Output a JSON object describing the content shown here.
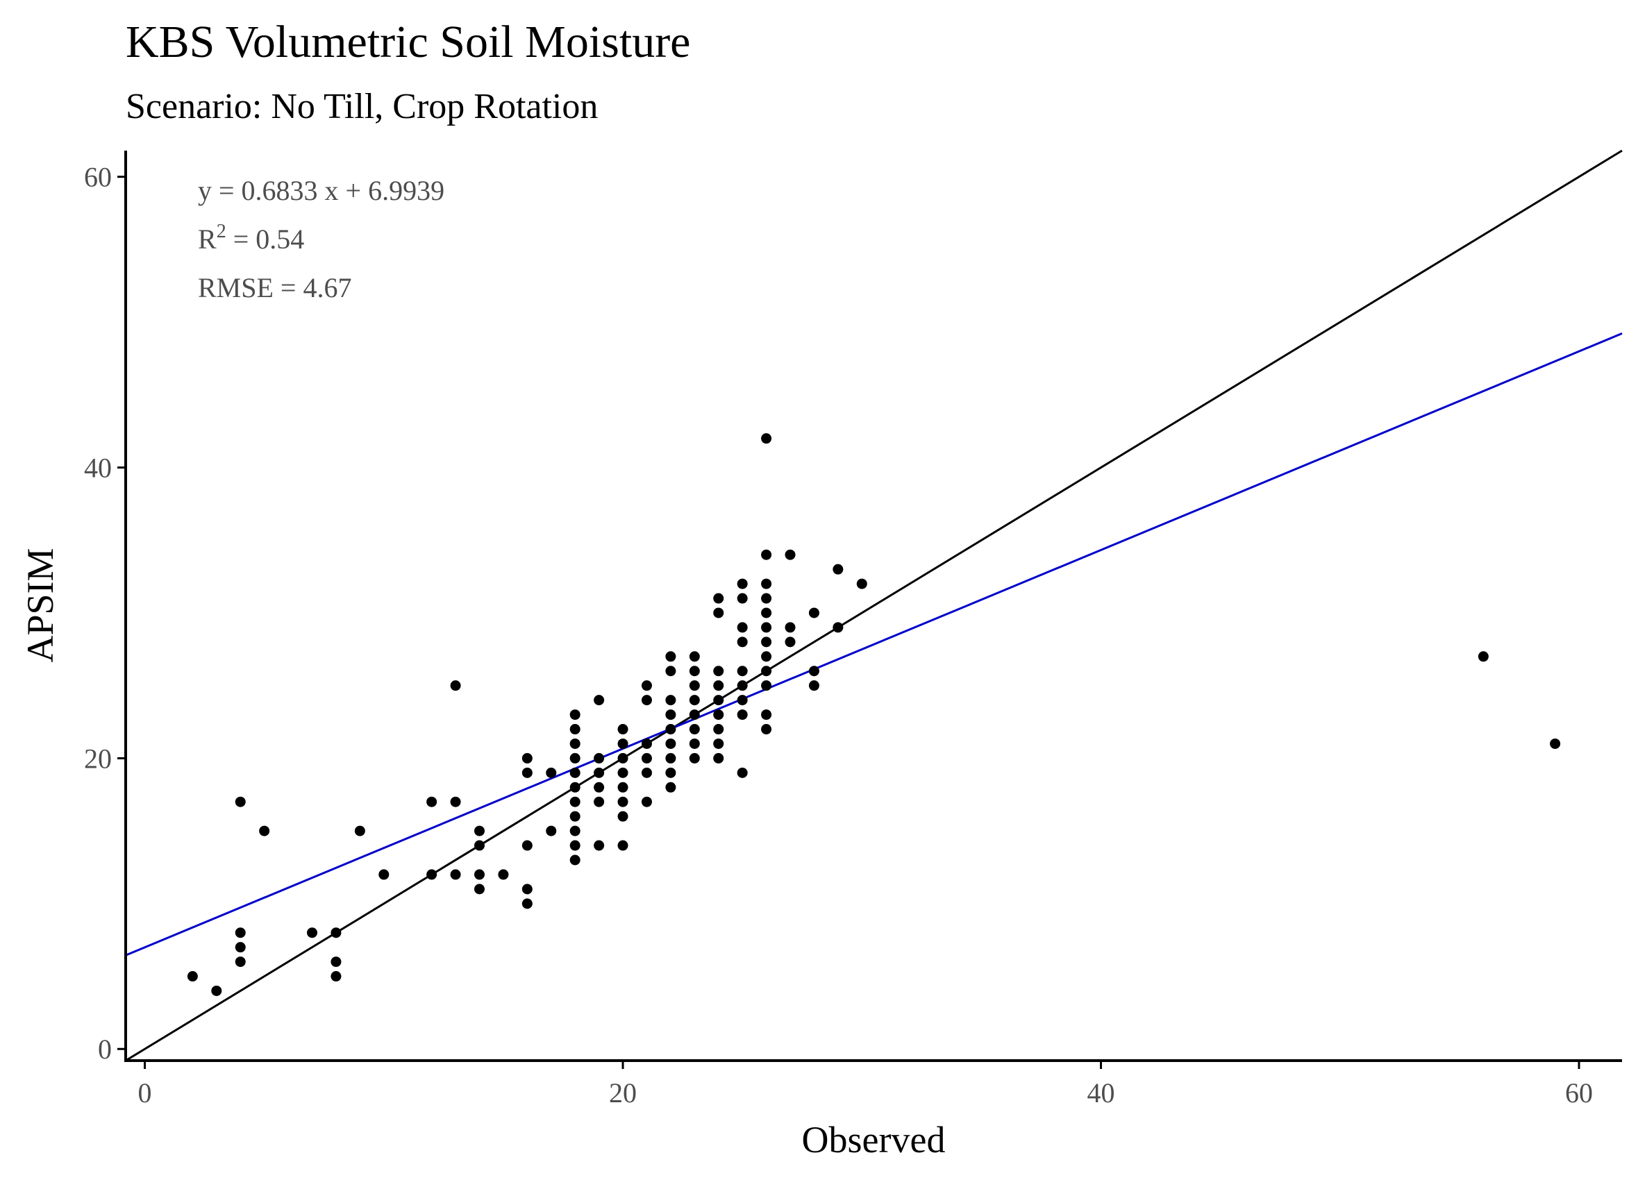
{
  "chart_data": {
    "type": "scatter",
    "title": "KBS Volumetric Soil Moisture",
    "subtitle": "Scenario: No Till, Crop Rotation",
    "xlabel": "Observed",
    "ylabel": "APSIM",
    "xlim": [
      -0.8,
      61.8
    ],
    "ylim": [
      -0.8,
      61.8
    ],
    "x_ticks": [
      0,
      20,
      40,
      60
    ],
    "y_ticks": [
      0,
      20,
      40,
      60
    ],
    "grid": false,
    "colors": {
      "points": "#000000",
      "one_to_one": "#000000",
      "fit": "#0000cc"
    },
    "annotations": {
      "equation": "y = 0.6833 x + 6.9939",
      "r2_prefix": "R",
      "r2_sup": "2",
      "r2_value": " = 0.54",
      "rmse": "RMSE = 4.67"
    },
    "one_to_one_line": {
      "slope": 1,
      "intercept": 0
    },
    "fit_line": {
      "slope": 0.6833,
      "intercept": 6.9939
    },
    "points": [
      [
        2,
        5
      ],
      [
        3,
        4
      ],
      [
        4,
        17
      ],
      [
        4,
        8
      ],
      [
        4,
        7
      ],
      [
        4,
        6
      ],
      [
        5,
        15
      ],
      [
        7,
        8
      ],
      [
        8,
        8
      ],
      [
        8,
        6
      ],
      [
        8,
        5
      ],
      [
        9,
        15
      ],
      [
        10,
        12
      ],
      [
        12,
        17
      ],
      [
        12,
        12
      ],
      [
        13,
        25
      ],
      [
        13,
        17
      ],
      [
        13,
        12
      ],
      [
        14,
        15
      ],
      [
        14,
        14
      ],
      [
        14,
        12
      ],
      [
        14,
        11
      ],
      [
        15,
        12
      ],
      [
        16,
        20
      ],
      [
        16,
        19
      ],
      [
        16,
        14
      ],
      [
        16,
        11
      ],
      [
        16,
        10
      ],
      [
        17,
        19
      ],
      [
        17,
        15
      ],
      [
        18,
        23
      ],
      [
        18,
        22
      ],
      [
        18,
        21
      ],
      [
        18,
        20
      ],
      [
        18,
        19
      ],
      [
        18,
        18
      ],
      [
        18,
        17
      ],
      [
        18,
        16
      ],
      [
        18,
        15
      ],
      [
        18,
        14
      ],
      [
        18,
        13
      ],
      [
        19,
        24
      ],
      [
        19,
        20
      ],
      [
        19,
        19
      ],
      [
        19,
        18
      ],
      [
        19,
        17
      ],
      [
        19,
        14
      ],
      [
        20,
        22
      ],
      [
        20,
        21
      ],
      [
        20,
        20
      ],
      [
        20,
        19
      ],
      [
        20,
        18
      ],
      [
        20,
        17
      ],
      [
        20,
        16
      ],
      [
        20,
        14
      ],
      [
        21,
        25
      ],
      [
        21,
        24
      ],
      [
        21,
        21
      ],
      [
        21,
        20
      ],
      [
        21,
        19
      ],
      [
        21,
        17
      ],
      [
        22,
        27
      ],
      [
        22,
        26
      ],
      [
        22,
        24
      ],
      [
        22,
        23
      ],
      [
        22,
        22
      ],
      [
        22,
        21
      ],
      [
        22,
        20
      ],
      [
        22,
        19
      ],
      [
        22,
        18
      ],
      [
        23,
        27
      ],
      [
        23,
        26
      ],
      [
        23,
        25
      ],
      [
        23,
        24
      ],
      [
        23,
        23
      ],
      [
        23,
        22
      ],
      [
        23,
        21
      ],
      [
        23,
        20
      ],
      [
        24,
        31
      ],
      [
        24,
        30
      ],
      [
        24,
        26
      ],
      [
        24,
        25
      ],
      [
        24,
        24
      ],
      [
        24,
        23
      ],
      [
        24,
        22
      ],
      [
        24,
        21
      ],
      [
        24,
        20
      ],
      [
        25,
        32
      ],
      [
        25,
        31
      ],
      [
        25,
        29
      ],
      [
        25,
        28
      ],
      [
        25,
        26
      ],
      [
        25,
        25
      ],
      [
        25,
        24
      ],
      [
        25,
        23
      ],
      [
        25,
        19
      ],
      [
        26,
        42
      ],
      [
        26,
        34
      ],
      [
        26,
        32
      ],
      [
        26,
        31
      ],
      [
        26,
        30
      ],
      [
        26,
        29
      ],
      [
        26,
        28
      ],
      [
        26,
        27
      ],
      [
        26,
        26
      ],
      [
        26,
        25
      ],
      [
        26,
        23
      ],
      [
        26,
        22
      ],
      [
        27,
        34
      ],
      [
        27,
        29
      ],
      [
        27,
        28
      ],
      [
        28,
        30
      ],
      [
        28,
        26
      ],
      [
        28,
        25
      ],
      [
        29,
        33
      ],
      [
        29,
        29
      ],
      [
        30,
        32
      ],
      [
        56,
        27
      ],
      [
        59,
        21
      ]
    ]
  }
}
